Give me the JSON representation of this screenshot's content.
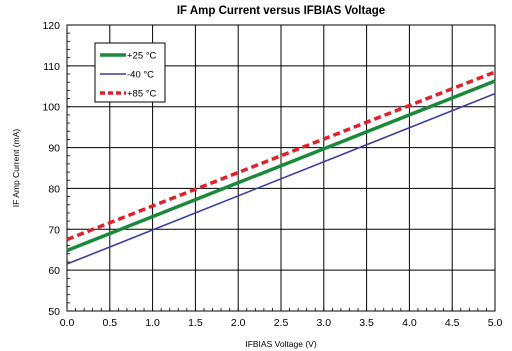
{
  "chart_data": {
    "type": "line",
    "title": "IF Amp Current versus IFBIAS Voltage",
    "xlabel": "IFBIAS Voltage (V)",
    "ylabel": "IF Amp Current (mA)",
    "xlim": [
      0,
      5
    ],
    "ylim": [
      50,
      120
    ],
    "x_ticks": [
      "0.0",
      "0.5",
      "1.0",
      "1.5",
      "2.0",
      "2.5",
      "3.0",
      "3.5",
      "4.0",
      "4.5",
      "5.0"
    ],
    "y_ticks": [
      "50",
      "60",
      "70",
      "80",
      "90",
      "100",
      "110",
      "120"
    ],
    "grid": true,
    "legend_position": "top-left",
    "series": [
      {
        "name": "+25 °C",
        "color": "#1a8a3a",
        "style": "solid-thick",
        "x": [
          0,
          5
        ],
        "y": [
          64.8,
          106.3
        ]
      },
      {
        "name": "-40 °C",
        "color": "#3d3d9e",
        "style": "solid-thin",
        "x": [
          0,
          5
        ],
        "y": [
          61.5,
          103.2
        ]
      },
      {
        "name": "+85 °C",
        "color": "#e0202a",
        "style": "dashed",
        "x": [
          0,
          5
        ],
        "y": [
          67.5,
          108.5
        ]
      }
    ]
  }
}
